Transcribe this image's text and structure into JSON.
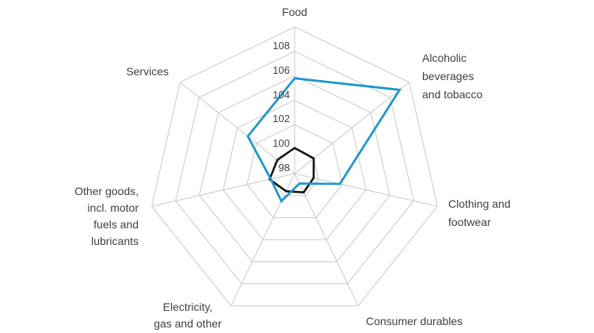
{
  "chart_data": {
    "type": "radar",
    "categories": [
      {
        "name": "Food",
        "lines": [
          "Food"
        ]
      },
      {
        "name": "Alcoholic beverages and tobacco",
        "lines": [
          "Alcoholic",
          "beverages",
          "and tobacco"
        ]
      },
      {
        "name": "Clothing and footwear",
        "lines": [
          "Clothing and",
          "footwear"
        ]
      },
      {
        "name": "Consumer durables",
        "lines": [
          "Consumer durables"
        ]
      },
      {
        "name": "Electricity, gas and other",
        "lines": [
          "Electricity,",
          "gas and other"
        ]
      },
      {
        "name": "Other goods, incl. motor fuels and lubricants",
        "lines": [
          "Other goods,",
          "incl. motor",
          "fuels and",
          "lubricants"
        ]
      },
      {
        "name": "Services",
        "lines": [
          "Services"
        ]
      }
    ],
    "series": [
      {
        "id": "black",
        "color": "#141414",
        "stroke_width": 2.6,
        "values": [
          100.1,
          100.0,
          99.6,
          99.7,
          99.6,
          100.1,
          99.8
        ]
      },
      {
        "id": "blue",
        "color": "#1e97cb",
        "stroke_width": 2.8,
        "values": [
          105.8,
          109.0,
          101.8,
          98.9,
          100.5,
          100.0,
          102.9
        ]
      }
    ],
    "axis": {
      "min": 98,
      "max": 110,
      "step": 2,
      "ticks": [
        98,
        100,
        102,
        104,
        106,
        108
      ]
    },
    "grid": true,
    "grid_color": "#c9c9c9",
    "text_color": "#414141",
    "legend": false,
    "title": ""
  }
}
